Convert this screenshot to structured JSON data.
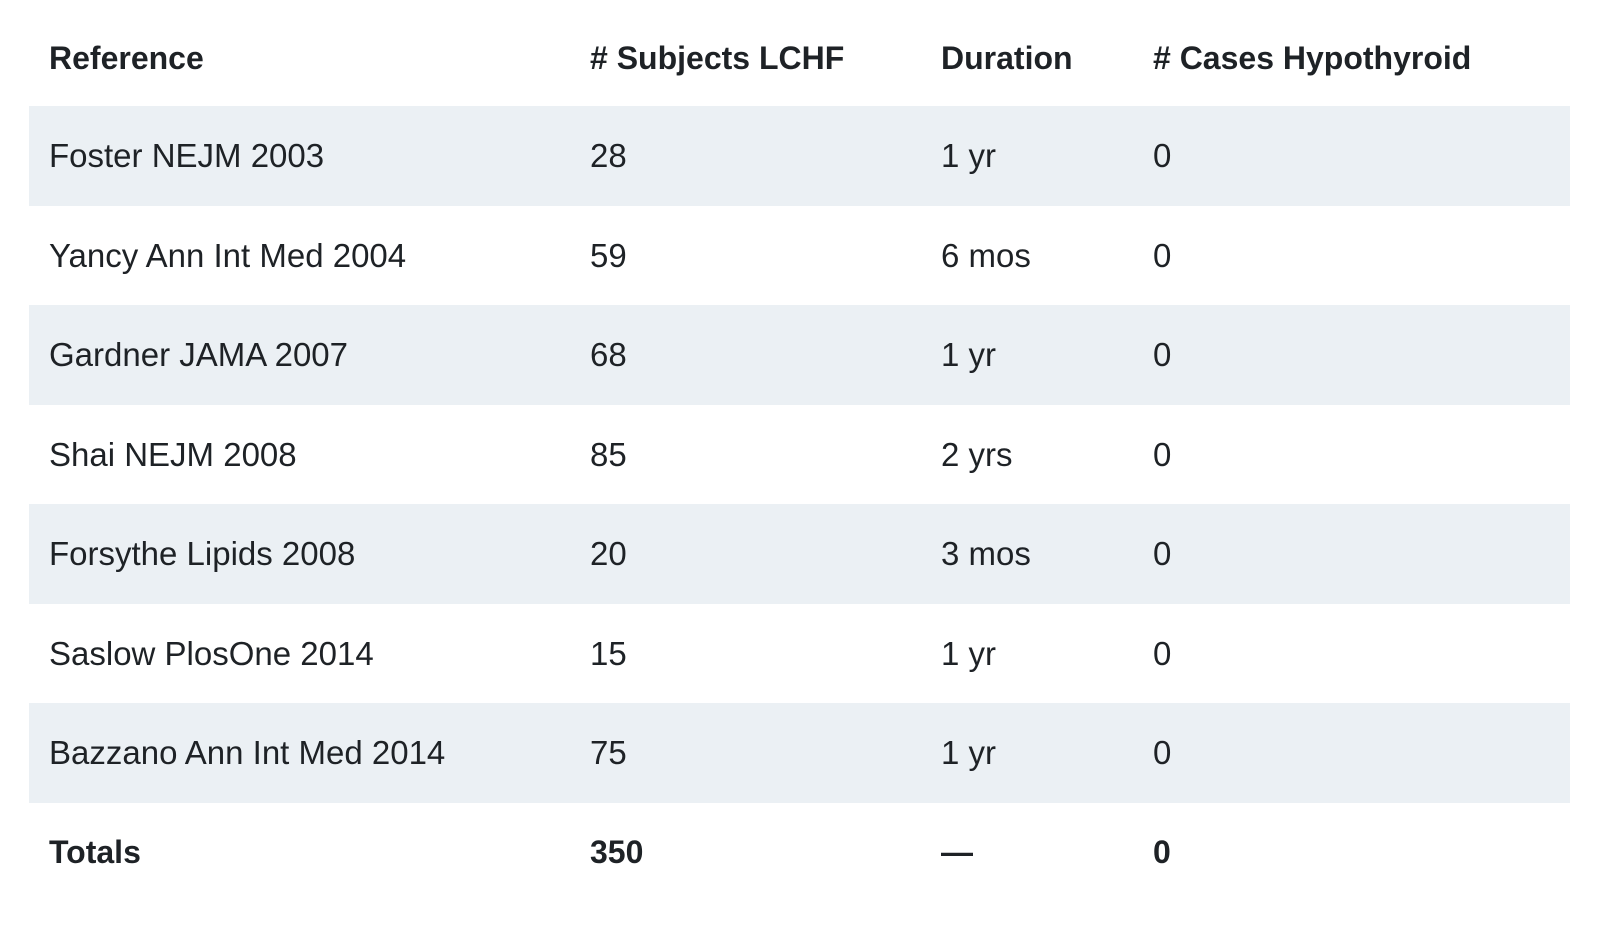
{
  "table": {
    "headers": [
      "Reference",
      "# Subjects LCHF",
      "Duration",
      "# Cases Hypothyroid"
    ],
    "rows": [
      [
        "Foster NEJM 2003",
        "28",
        "1 yr",
        "0"
      ],
      [
        "Yancy Ann Int Med 2004",
        "59",
        "6 mos",
        "0"
      ],
      [
        "Gardner JAMA 2007",
        "68",
        "1 yr",
        "0"
      ],
      [
        "Shai NEJM 2008",
        "85",
        "2 yrs",
        "0"
      ],
      [
        "Forsythe Lipids 2008",
        "20",
        "3 mos",
        "0"
      ],
      [
        "Saslow PlosOne 2014",
        "15",
        "1 yr",
        "0"
      ],
      [
        "Bazzano Ann Int Med 2014",
        "75",
        "1 yr",
        "0"
      ]
    ],
    "totals": [
      "Totals",
      "350",
      "—",
      "0"
    ]
  },
  "colors": {
    "stripe": "#ebf0f4",
    "text": "#1e2226",
    "background": "#ffffff"
  }
}
